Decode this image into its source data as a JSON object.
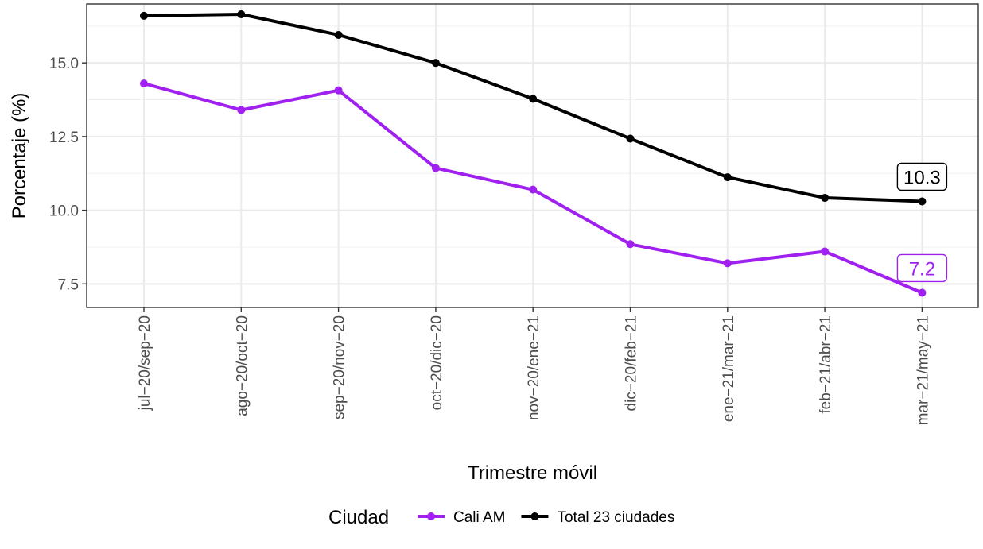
{
  "chart_data": {
    "type": "line",
    "title": "",
    "xlabel": "Trimestre móvil",
    "ylabel": "Porcentaje (%)",
    "categories": [
      "jul−20/sep−20",
      "ago−20/oct−20",
      "sep−20/nov−20",
      "oct−20/dic−20",
      "nov−20/ene−21",
      "dic−20/feb−21",
      "ene−21/mar−21",
      "feb−21/abr−21",
      "mar−21/may−21"
    ],
    "ylim": [
      6.7,
      17.0
    ],
    "yticks": [
      7.5,
      10.0,
      12.5,
      15.0
    ],
    "ytick_labels": [
      "7.5",
      "10.0",
      "12.5",
      "15.0"
    ],
    "grid": true,
    "legend": {
      "title": "Ciudad",
      "position": "bottom"
    },
    "series": [
      {
        "name": "Cali AM",
        "color": "#a020f0",
        "values": [
          14.3,
          13.4,
          14.07,
          11.43,
          10.7,
          8.85,
          8.2,
          8.6,
          7.2
        ],
        "end_label": "7.2"
      },
      {
        "name": "Total 23 ciudades",
        "color": "#000000",
        "values": [
          16.6,
          16.65,
          15.95,
          15.0,
          13.78,
          12.43,
          11.12,
          10.42,
          10.3
        ],
        "end_label": "10.3"
      }
    ]
  }
}
